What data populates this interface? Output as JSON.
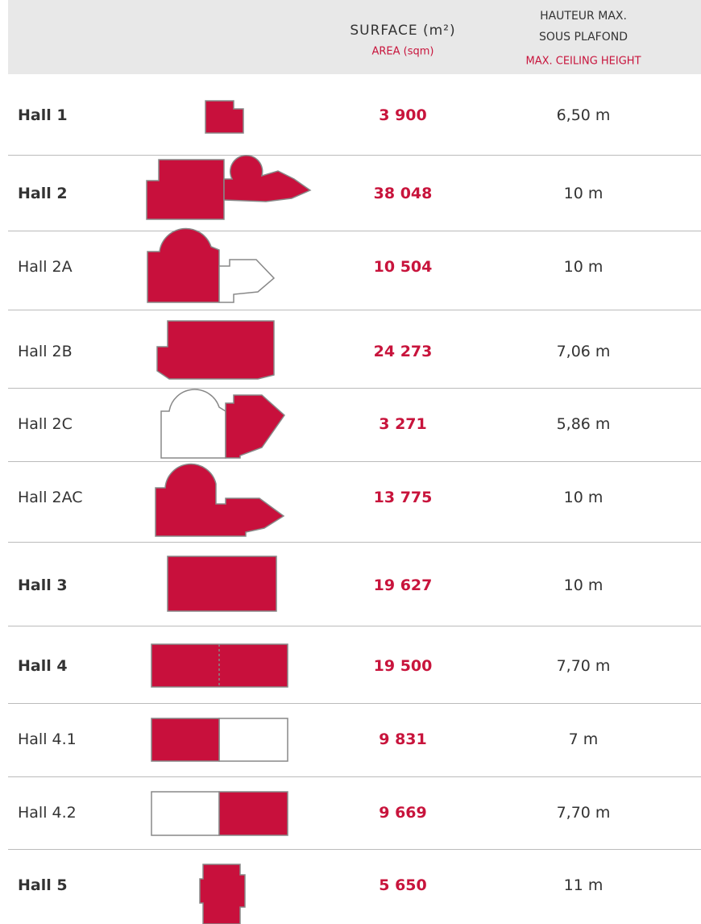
{
  "header": {
    "surface_fr": "SURFACE (m²)",
    "surface_en": "AREA (sqm)",
    "height_fr_1": "HAUTEUR MAX.",
    "height_fr_2": "SOUS PLAFOND",
    "height_en": "MAX. CEILING HEIGHT"
  },
  "rows": [
    {
      "name": "Hall 1",
      "bold": true,
      "surface": "3 900",
      "height": "6,50 m"
    },
    {
      "name": "Hall 2",
      "bold": true,
      "surface": "38 048",
      "height": "10 m"
    },
    {
      "name": "Hall 2A",
      "bold": false,
      "surface": "10 504",
      "height": "10 m"
    },
    {
      "name": "Hall 2B",
      "bold": false,
      "surface": "24 273",
      "height": "7,06 m"
    },
    {
      "name": "Hall 2C",
      "bold": false,
      "surface": "3 271",
      "height": "5,86 m"
    },
    {
      "name": "Hall 2AC",
      "bold": false,
      "surface": "13 775",
      "height": "10 m"
    },
    {
      "name": "Hall 3",
      "bold": true,
      "surface": "19 627",
      "height": "10 m"
    },
    {
      "name": "Hall 4",
      "bold": true,
      "surface": "19 500",
      "height": "7,70 m"
    },
    {
      "name": "Hall 4.1",
      "bold": false,
      "surface": "9 831",
      "height": "7 m"
    },
    {
      "name": "Hall 4.2",
      "bold": false,
      "surface": "9 669",
      "height": "7,70 m"
    },
    {
      "name": "Hall 5",
      "bold": true,
      "surface": "5 650",
      "height": "11 m"
    }
  ]
}
